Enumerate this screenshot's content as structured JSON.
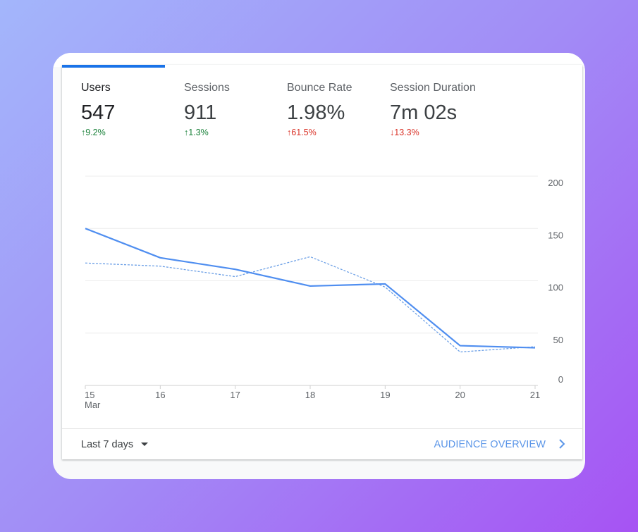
{
  "metrics": [
    {
      "label": "Users",
      "value": "547",
      "change": "↑9.2%",
      "change_color": "#188038",
      "selected": true
    },
    {
      "label": "Sessions",
      "value": "911",
      "change": "↑1.3%",
      "change_color": "#188038",
      "selected": false
    },
    {
      "label": "Bounce Rate",
      "value": "1.98%",
      "change": "↑61.5%",
      "change_color": "#d93025",
      "selected": false
    },
    {
      "label": "Session Duration",
      "value": "7m 02s",
      "change": "↓13.3%",
      "change_color": "#d93025",
      "selected": false
    }
  ],
  "chart_data": {
    "type": "line",
    "categories": [
      "15",
      "16",
      "17",
      "18",
      "19",
      "20",
      "21"
    ],
    "category_sublabel": "Mar",
    "series": [
      {
        "color": "#4f8ef0",
        "line_style": "solid",
        "values": [
          150,
          122,
          111,
          95,
          97,
          38,
          36
        ]
      },
      {
        "color": "#6b9fe6",
        "line_style": "dashed",
        "values": [
          117,
          114,
          104,
          123,
          94,
          32,
          37
        ]
      }
    ],
    "ylim": [
      0,
      200
    ],
    "yticks": [
      0,
      50,
      100,
      150,
      200
    ],
    "grid": true,
    "y_axis_side": "right"
  },
  "footer": {
    "range": "Last 7 days",
    "link": "AUDIENCE OVERVIEW"
  }
}
